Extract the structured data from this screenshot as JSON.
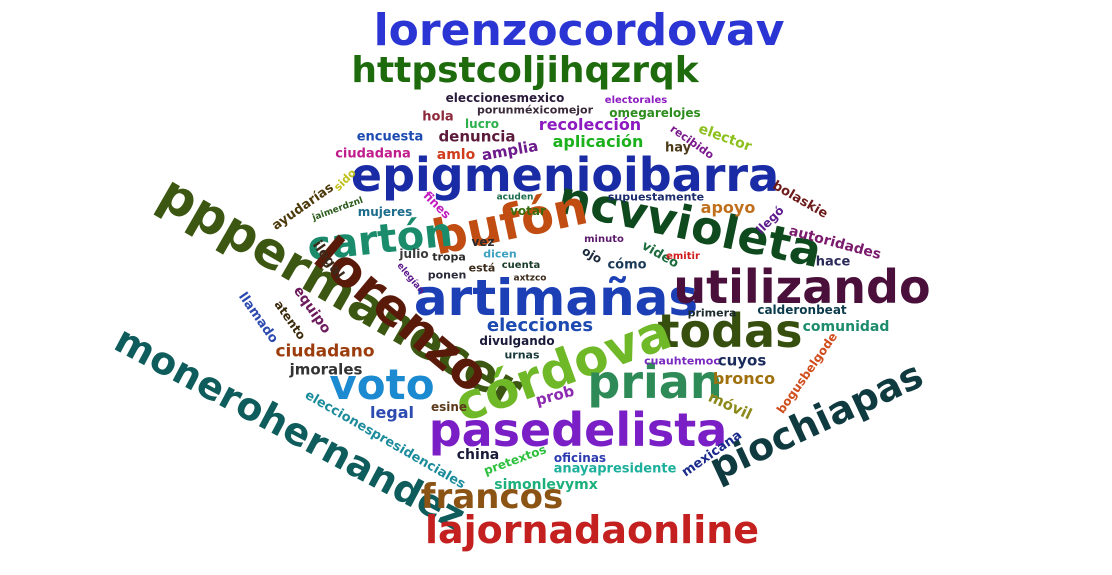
{
  "word_cloud": {
    "words": [
      {
        "text": "lorenzocordovav",
        "color": "#2b35d4"
      },
      {
        "text": "httpstcoljihqzrqk",
        "color": "#1e6b0e"
      },
      {
        "text": "epigmenioibarra",
        "color": "#1a2ba6"
      },
      {
        "text": "ncvvioleta",
        "color": "#0f4a1f"
      },
      {
        "text": "bufón",
        "color": "#c14d12"
      },
      {
        "text": "pppermanecer",
        "color": "#3c5711"
      },
      {
        "text": "cartón",
        "color": "#1a8c6c"
      },
      {
        "text": "lorenzo",
        "color": "#5a1a0a"
      },
      {
        "text": "artimañas",
        "color": "#1c3fb5"
      },
      {
        "text": "utilizando",
        "color": "#4a0f3a"
      },
      {
        "text": "todas",
        "color": "#364f0e"
      },
      {
        "text": "córdova",
        "color": "#6fb827"
      },
      {
        "text": "prian",
        "color": "#2e8b57"
      },
      {
        "text": "voto",
        "color": "#1c8ad0"
      },
      {
        "text": "pasedelista",
        "color": "#7a1fc6"
      },
      {
        "text": "piochiapas",
        "color": "#0f3a40"
      },
      {
        "text": "monerohernandez",
        "color": "#0f5c5c"
      },
      {
        "text": "francos",
        "color": "#8c5414"
      },
      {
        "text": "lajornadaonline",
        "color": "#c42020"
      },
      {
        "text": "elecciones",
        "color": "#1c4ab0"
      },
      {
        "text": "ciudadano",
        "color": "#9c3c0c"
      },
      {
        "text": "jmorales",
        "color": "#333333"
      },
      {
        "text": "bronco",
        "color": "#a0700c"
      },
      {
        "text": "cuyos",
        "color": "#1a2a5a"
      },
      {
        "text": "comunidad",
        "color": "#1c8c6c"
      },
      {
        "text": "legal",
        "color": "#2c4ab0"
      },
      {
        "text": "móvil",
        "color": "#8c8a1a"
      },
      {
        "text": "prob",
        "color": "#8c2ab0"
      },
      {
        "text": "esine",
        "color": "#5c3a1a"
      },
      {
        "text": "china",
        "color": "#1a1a3a"
      },
      {
        "text": "oficinas",
        "color": "#2c3ab0"
      },
      {
        "text": "anayapresidente",
        "color": "#1cb09c"
      },
      {
        "text": "simonlevymx",
        "color": "#1cb07c"
      },
      {
        "text": "mexicana",
        "color": "#1a2a8c"
      },
      {
        "text": "pretextos",
        "color": "#2cc03c"
      },
      {
        "text": "eleccionespresidenciales",
        "color": "#1c8c9c"
      },
      {
        "text": "bogusbelgode",
        "color": "#d04c1c"
      },
      {
        "text": "cuauhtemoc",
        "color": "#7a2ac0"
      },
      {
        "text": "divulgando",
        "color": "#1a1a3a"
      },
      {
        "text": "urnas",
        "color": "#1a3a3a"
      },
      {
        "text": "primera",
        "color": "#1a2a2a"
      },
      {
        "text": "calderonbeat",
        "color": "#0c3c4c"
      },
      {
        "text": "atento",
        "color": "#3a2a0a"
      },
      {
        "text": "llamado",
        "color": "#2c4ab0"
      },
      {
        "text": "equipo",
        "color": "#6c1a5c"
      },
      {
        "text": "ilegal",
        "color": "#3a2a1a"
      },
      {
        "text": "ayudarías",
        "color": "#4c3a0a"
      },
      {
        "text": "jaimerdznl",
        "color": "#2a5a1a"
      },
      {
        "text": "sido",
        "color": "#c0c01c"
      },
      {
        "text": "mujeres",
        "color": "#1c6c8c"
      },
      {
        "text": "fines",
        "color": "#c01cc0"
      },
      {
        "text": "votar",
        "color": "#3a6c0c"
      },
      {
        "text": "acuden",
        "color": "#1c6c4c"
      },
      {
        "text": "vez",
        "color": "#2a2a2a"
      },
      {
        "text": "julio",
        "color": "#3a3a3a"
      },
      {
        "text": "tropa",
        "color": "#2a2a2a"
      },
      {
        "text": "dicen",
        "color": "#3ca0c0"
      },
      {
        "text": "elegían",
        "color": "#5c1a8c"
      },
      {
        "text": "ponen",
        "color": "#2a2a3a"
      },
      {
        "text": "está",
        "color": "#3a2a1a"
      },
      {
        "text": "cuenta",
        "color": "#1a3a2a"
      },
      {
        "text": "axtzco",
        "color": "#3a2a1a"
      },
      {
        "text": "ojo",
        "color": "#1a2a3a"
      },
      {
        "text": "cómo",
        "color": "#1a3a5a"
      },
      {
        "text": "video",
        "color": "#1c6c3c"
      },
      {
        "text": "minuto",
        "color": "#5c1a6c"
      },
      {
        "text": "emitir",
        "color": "#d01c1c"
      },
      {
        "text": "supuestamente",
        "color": "#1a2a6c"
      },
      {
        "text": "apoyo",
        "color": "#c0701c"
      },
      {
        "text": "llegó",
        "color": "#5c1a8c"
      },
      {
        "text": "autoridades",
        "color": "#7a1a6c"
      },
      {
        "text": "hace",
        "color": "#2a2a5a"
      },
      {
        "text": "bolaskie",
        "color": "#6c1a1a"
      },
      {
        "text": "hay",
        "color": "#4c3a1a"
      },
      {
        "text": "recibido",
        "color": "#7a1a8c"
      },
      {
        "text": "elector",
        "color": "#8cc01c"
      },
      {
        "text": "aplicación",
        "color": "#1cb01c"
      },
      {
        "text": "amplia",
        "color": "#6c1a8c"
      },
      {
        "text": "recolección",
        "color": "#8c1ac0"
      },
      {
        "text": "lucro",
        "color": "#2cb04c"
      },
      {
        "text": "omegarelojes",
        "color": "#2c8c1c"
      },
      {
        "text": "electorales",
        "color": "#8c1ac0"
      },
      {
        "text": "hola",
        "color": "#8c2a3c"
      },
      {
        "text": "denuncia",
        "color": "#5c1a3a"
      },
      {
        "text": "encuesta",
        "color": "#1c4ab0"
      },
      {
        "text": "ciudadana",
        "color": "#c01c8c"
      },
      {
        "text": "amlo",
        "color": "#d03c1c"
      },
      {
        "text": "eleccionesmexico",
        "color": "#2a1a3a"
      },
      {
        "text": "porunméxicomejor",
        "color": "#3a2a3a"
      }
    ]
  }
}
